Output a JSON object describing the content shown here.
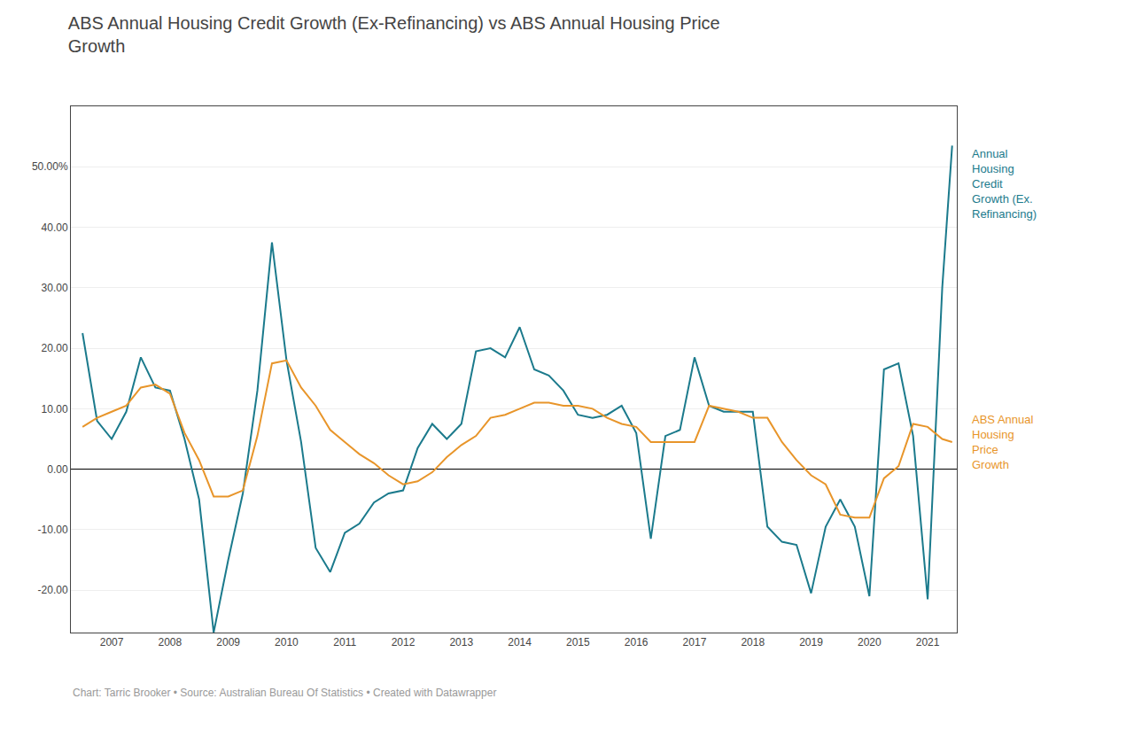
{
  "chart_data": {
    "type": "line",
    "title": "ABS Annual Housing Credit Growth (Ex-Refinancing) vs ABS Annual Housing Price\nGrowth",
    "footnote": "Chart: Tarric Brooker • Source: Australian Bureau Of Statistics • Created with Datawrapper",
    "x": [
      2006.5,
      2006.75,
      2007.0,
      2007.25,
      2007.5,
      2007.75,
      2008.0,
      2008.25,
      2008.5,
      2008.75,
      2009.0,
      2009.25,
      2009.5,
      2009.75,
      2010.0,
      2010.25,
      2010.5,
      2010.75,
      2011.0,
      2011.25,
      2011.5,
      2011.75,
      2012.0,
      2012.25,
      2012.5,
      2012.75,
      2013.0,
      2013.25,
      2013.5,
      2013.75,
      2014.0,
      2014.25,
      2014.5,
      2014.75,
      2015.0,
      2015.25,
      2015.5,
      2015.75,
      2016.0,
      2016.25,
      2016.5,
      2016.75,
      2017.0,
      2017.25,
      2017.5,
      2017.75,
      2018.0,
      2018.25,
      2018.5,
      2018.75,
      2019.0,
      2019.25,
      2019.5,
      2019.75,
      2020.0,
      2020.25,
      2020.5,
      2020.75,
      2021.0,
      2021.25,
      2021.42
    ],
    "series": [
      {
        "name": "Annual\nHousing\nCredit\nGrowth (Ex.\nRefinancing)",
        "color": "#1b7a8c",
        "values": [
          22.5,
          8.0,
          5.0,
          9.5,
          18.5,
          13.5,
          13.0,
          5.0,
          -5.0,
          -27.0,
          -15.0,
          -4.0,
          13.0,
          37.5,
          18.0,
          4.5,
          -13.0,
          -17.0,
          -10.5,
          -9.0,
          -5.5,
          -4.0,
          -3.5,
          3.5,
          7.5,
          5.0,
          7.5,
          19.5,
          20.0,
          18.5,
          23.5,
          16.5,
          15.5,
          13.0,
          9.0,
          8.5,
          9.0,
          10.5,
          6.0,
          -11.5,
          5.5,
          6.5,
          18.5,
          10.5,
          9.5,
          9.5,
          9.5,
          -9.5,
          -12.0,
          -12.5,
          -20.5,
          -9.5,
          -5.0,
          -9.5,
          -21.0,
          16.5,
          17.5,
          5.5,
          -21.5,
          30.0,
          53.5
        ]
      },
      {
        "name": "ABS Annual\nHousing\nPrice\nGrowth",
        "color": "#e8952a",
        "values": [
          7.0,
          8.5,
          9.5,
          10.5,
          13.5,
          14.0,
          12.5,
          6.0,
          1.5,
          -4.5,
          -4.5,
          -3.5,
          5.5,
          17.5,
          18.0,
          13.5,
          10.5,
          6.5,
          4.5,
          2.5,
          1.0,
          -1.0,
          -2.5,
          -2.0,
          -0.5,
          2.0,
          4.0,
          5.5,
          8.5,
          9.0,
          10.0,
          11.0,
          11.0,
          10.5,
          10.5,
          10.0,
          8.5,
          7.5,
          7.0,
          4.5,
          4.5,
          4.5,
          4.5,
          10.5,
          10.0,
          9.5,
          8.5,
          8.5,
          4.5,
          1.5,
          -1.0,
          -2.5,
          -7.5,
          -8.0,
          -8.0,
          -1.5,
          0.5,
          7.5,
          7.0,
          5.0,
          4.5
        ]
      }
    ],
    "xlim": [
      2006.3,
      2021.5
    ],
    "xticks": [
      2007,
      2008,
      2009,
      2010,
      2011,
      2012,
      2013,
      2014,
      2015,
      2016,
      2017,
      2018,
      2019,
      2020,
      2021
    ],
    "ylim": [
      -27,
      60
    ],
    "yticks": [
      {
        "value": -20.0,
        "label": "-20.00"
      },
      {
        "value": -10.0,
        "label": "-10.00"
      },
      {
        "value": 0.0,
        "label": "0.00"
      },
      {
        "value": 10.0,
        "label": "10.00"
      },
      {
        "value": 20.0,
        "label": "20.00"
      },
      {
        "value": 30.0,
        "label": "30.00"
      },
      {
        "value": 40.0,
        "label": "40.00"
      },
      {
        "value": 50,
        "label": "50.00%"
      }
    ],
    "grid": "y"
  }
}
